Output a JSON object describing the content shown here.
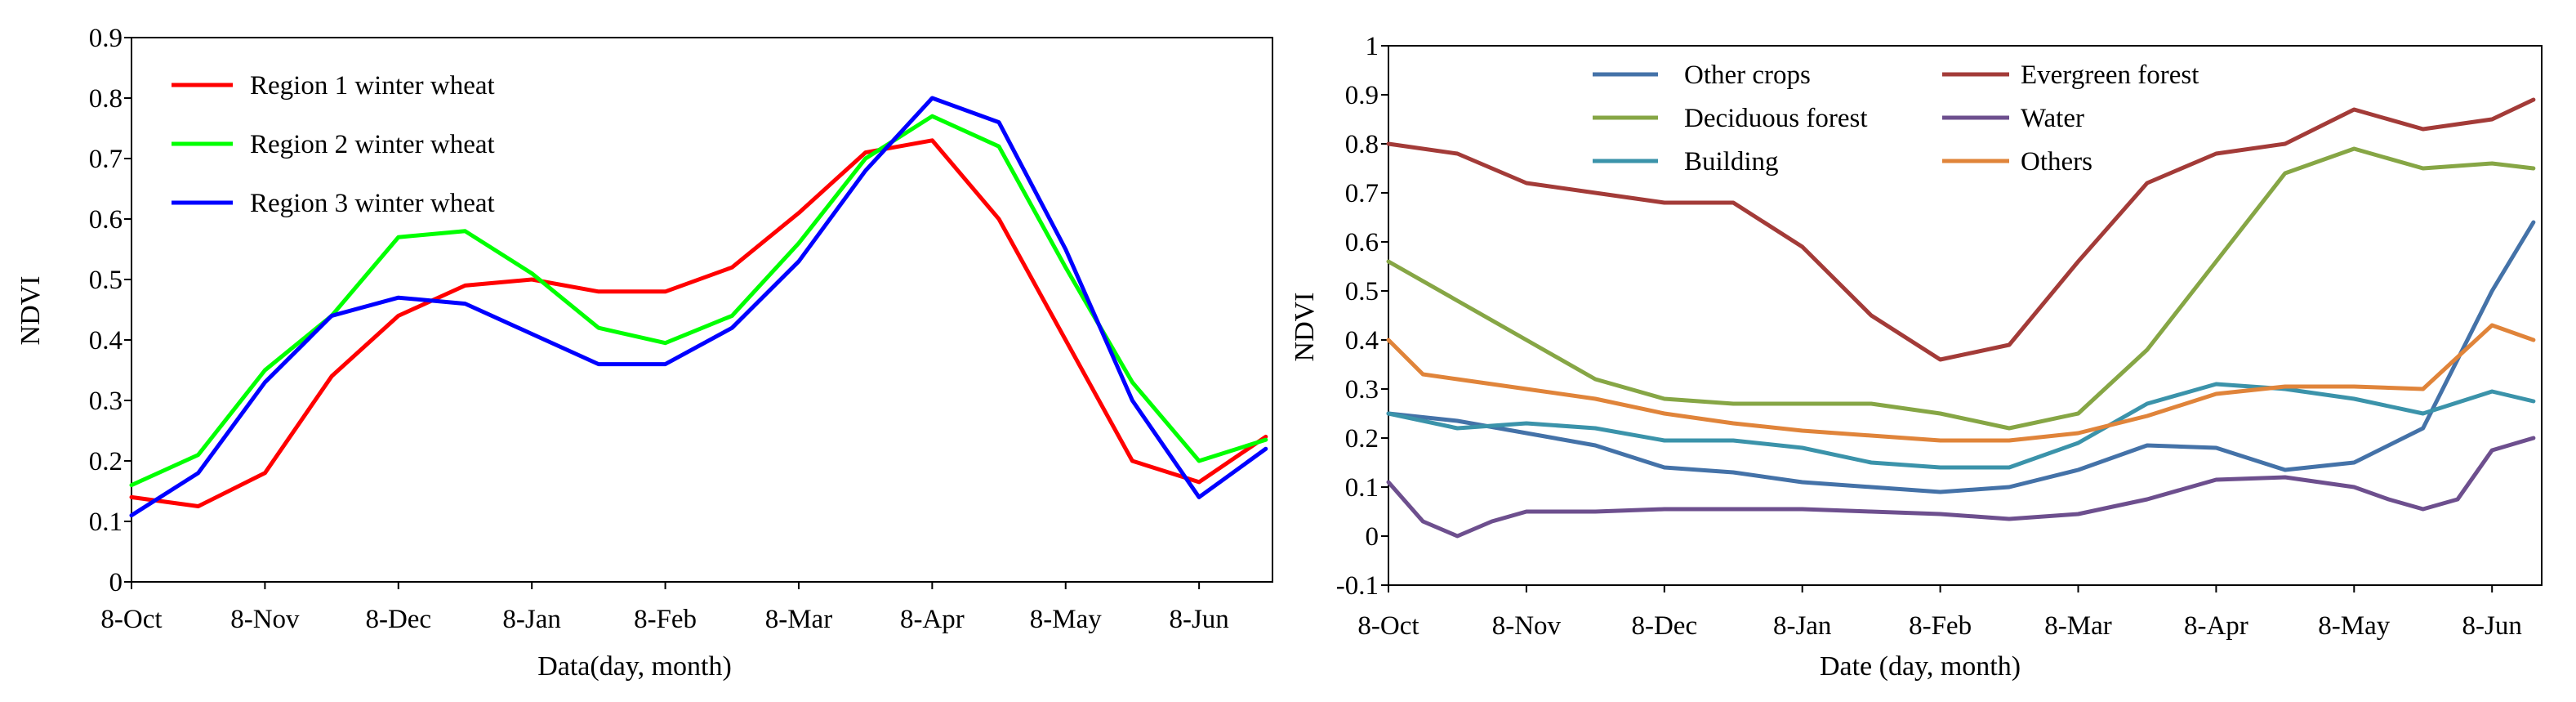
{
  "colors": {
    "region1": "#ff0000",
    "region2": "#00ff00",
    "region3": "#0000ff",
    "other_crops": "#4472a8",
    "evergreen_forest": "#a33b38",
    "deciduous_forest": "#86a645",
    "water": "#6d4f8e",
    "building": "#3b93aa",
    "others": "#e0843a"
  },
  "chart_data": [
    {
      "type": "line",
      "title": "",
      "xlabel": "Data(day, month)",
      "ylabel": "NDVI",
      "ylim": [
        0,
        0.9
      ],
      "yticks": [
        "0",
        "0.1",
        "0.2",
        "0.3",
        "0.4",
        "0.5",
        "0.6",
        "0.7",
        "0.8",
        "0.9"
      ],
      "xticks": [
        "8-Oct",
        "8-Nov",
        "8-Dec",
        "8-Jan",
        "8-Feb",
        "8-Mar",
        "8-Apr",
        "8-May",
        "8-Jun"
      ],
      "x_is_month_index": true,
      "grid": false,
      "legend_position": "top-left",
      "series": [
        {
          "name": "Region 1 winter wheat",
          "color_key": "region1",
          "x": [
            0,
            0.5,
            1,
            1.5,
            2,
            2.5,
            3,
            3.5,
            4,
            4.5,
            5,
            5.5,
            6,
            6.5,
            7,
            7.5,
            8,
            8.5
          ],
          "y": [
            0.14,
            0.125,
            0.18,
            0.34,
            0.44,
            0.49,
            0.5,
            0.48,
            0.48,
            0.52,
            0.61,
            0.71,
            0.73,
            0.6,
            0.4,
            0.2,
            0.165,
            0.24
          ]
        },
        {
          "name": "Region 2 winter wheat",
          "color_key": "region2",
          "x": [
            0,
            0.5,
            1,
            1.5,
            2,
            2.5,
            3,
            3.5,
            4,
            4.5,
            5,
            5.5,
            6,
            6.5,
            7,
            7.5,
            8,
            8.5
          ],
          "y": [
            0.16,
            0.21,
            0.35,
            0.44,
            0.57,
            0.58,
            0.51,
            0.42,
            0.395,
            0.44,
            0.56,
            0.7,
            0.77,
            0.72,
            0.52,
            0.33,
            0.2,
            0.235
          ]
        },
        {
          "name": "Region 3 winter wheat",
          "color_key": "region3",
          "x": [
            0,
            0.5,
            1,
            1.5,
            2,
            2.5,
            3,
            3.5,
            4,
            4.5,
            5,
            5.5,
            6,
            6.5,
            7,
            7.5,
            8,
            8.5
          ],
          "y": [
            0.11,
            0.18,
            0.33,
            0.44,
            0.47,
            0.46,
            0.41,
            0.36,
            0.36,
            0.42,
            0.53,
            0.68,
            0.8,
            0.76,
            0.55,
            0.3,
            0.14,
            0.22
          ]
        }
      ]
    },
    {
      "type": "line",
      "title": "",
      "xlabel": "Date (day, month)",
      "ylabel": "NDVI",
      "ylim": [
        -0.1,
        1
      ],
      "yticks": [
        "-0.1",
        "0",
        "0.1",
        "0.2",
        "0.3",
        "0.4",
        "0.5",
        "0.6",
        "0.7",
        "0.8",
        "0.9",
        "1"
      ],
      "xticks": [
        "8-Oct",
        "8-Nov",
        "8-Dec",
        "8-Jan",
        "8-Feb",
        "8-Mar",
        "8-Apr",
        "8-May",
        "8-Jun"
      ],
      "x_is_month_index": true,
      "grid": false,
      "legend_position": "top, two columns",
      "series": [
        {
          "name": "Other crops",
          "color_key": "other_crops",
          "x": [
            0,
            0.5,
            1,
            1.5,
            2,
            2.5,
            3,
            3.5,
            4,
            4.5,
            5,
            5.5,
            6,
            6.5,
            7,
            7.5,
            8,
            8.3
          ],
          "y": [
            0.25,
            0.235,
            0.21,
            0.185,
            0.14,
            0.13,
            0.11,
            0.1,
            0.09,
            0.1,
            0.135,
            0.185,
            0.18,
            0.135,
            0.15,
            0.22,
            0.5,
            0.64
          ]
        },
        {
          "name": "Evergreen forest",
          "color_key": "evergreen_forest",
          "x": [
            0,
            0.5,
            1,
            1.5,
            2,
            2.5,
            3,
            3.5,
            4,
            4.5,
            5,
            5.5,
            6,
            6.5,
            7,
            7.5,
            8,
            8.3
          ],
          "y": [
            0.8,
            0.78,
            0.72,
            0.7,
            0.68,
            0.68,
            0.59,
            0.45,
            0.36,
            0.39,
            0.56,
            0.72,
            0.78,
            0.8,
            0.87,
            0.83,
            0.85,
            0.89
          ]
        },
        {
          "name": "Deciduous forest",
          "color_key": "deciduous_forest",
          "x": [
            0,
            0.5,
            1,
            1.5,
            2,
            2.5,
            3,
            3.5,
            4,
            4.5,
            5,
            5.5,
            6,
            6.5,
            7,
            7.5,
            8,
            8.3
          ],
          "y": [
            0.56,
            0.48,
            0.4,
            0.32,
            0.28,
            0.27,
            0.27,
            0.27,
            0.25,
            0.22,
            0.25,
            0.38,
            0.56,
            0.74,
            0.79,
            0.75,
            0.76,
            0.75
          ]
        },
        {
          "name": "Water",
          "color_key": "water",
          "x": [
            0,
            0.25,
            0.5,
            0.75,
            1,
            1.5,
            2,
            2.5,
            3,
            3.5,
            4,
            4.5,
            5,
            5.5,
            6,
            6.5,
            7,
            7.25,
            7.5,
            7.75,
            8,
            8.3
          ],
          "y": [
            0.11,
            0.03,
            0.0,
            0.03,
            0.05,
            0.05,
            0.055,
            0.055,
            0.055,
            0.05,
            0.045,
            0.035,
            0.045,
            0.075,
            0.115,
            0.12,
            0.1,
            0.075,
            0.055,
            0.075,
            0.175,
            0.2
          ]
        },
        {
          "name": "Building",
          "color_key": "building",
          "x": [
            0,
            0.5,
            1,
            1.5,
            2,
            2.5,
            3,
            3.5,
            4,
            4.5,
            5,
            5.5,
            6,
            6.5,
            7,
            7.5,
            8,
            8.3
          ],
          "y": [
            0.25,
            0.22,
            0.23,
            0.22,
            0.195,
            0.195,
            0.18,
            0.15,
            0.14,
            0.14,
            0.19,
            0.27,
            0.31,
            0.3,
            0.28,
            0.25,
            0.295,
            0.275
          ]
        },
        {
          "name": "Others",
          "color_key": "others",
          "x": [
            0,
            0.25,
            0.5,
            1,
            1.5,
            2,
            2.5,
            3,
            3.5,
            4,
            4.5,
            5,
            5.5,
            6,
            6.5,
            7,
            7.5,
            8,
            8.3
          ],
          "y": [
            0.4,
            0.33,
            0.32,
            0.3,
            0.28,
            0.25,
            0.23,
            0.215,
            0.205,
            0.195,
            0.195,
            0.21,
            0.245,
            0.29,
            0.305,
            0.305,
            0.3,
            0.43,
            0.4
          ]
        }
      ]
    }
  ]
}
